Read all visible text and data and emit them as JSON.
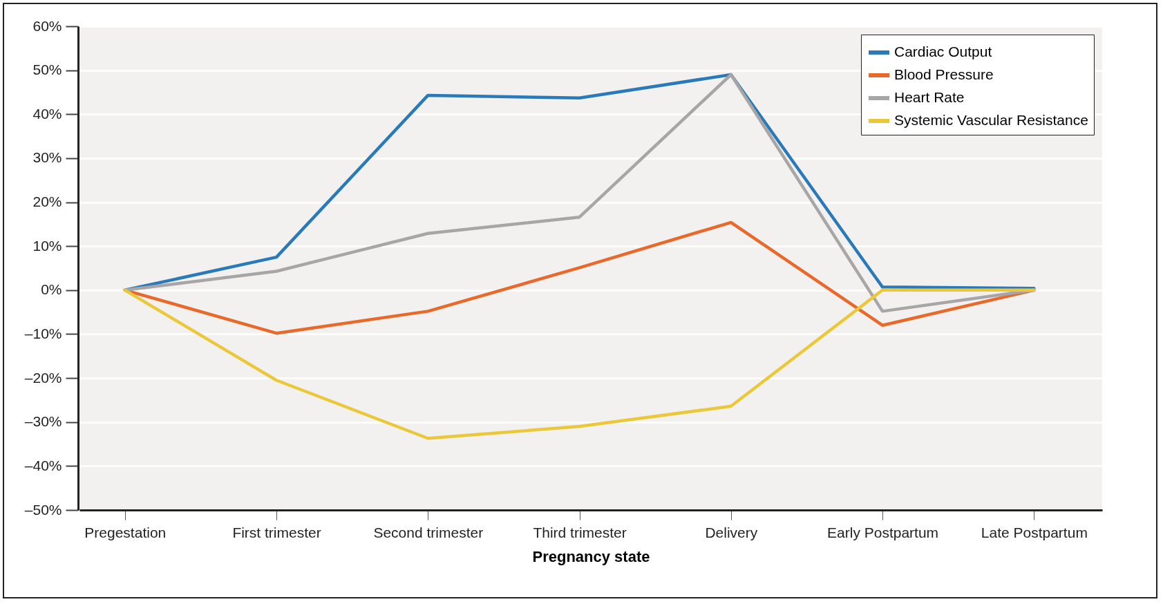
{
  "chart_data": {
    "type": "line",
    "xlabel": "Pregnancy state",
    "categories": [
      "Pregestation",
      "First trimester",
      "Second trimester",
      "Third trimester",
      "Delivery",
      "Early Postpartum",
      "Late Postpartum"
    ],
    "series": [
      {
        "name": "Cardiac Output",
        "color": "#2a7ab9",
        "values": [
          0,
          7.5,
          44.3,
          43.7,
          49,
          0.7,
          0.4
        ]
      },
      {
        "name": "Blood Pressure",
        "color": "#e8692a",
        "values": [
          0,
          -9.8,
          -4.8,
          5.1,
          15.4,
          -8,
          0
        ]
      },
      {
        "name": "Heart Rate",
        "color": "#a7a5a5",
        "values": [
          0,
          4.3,
          12.9,
          16.6,
          49,
          -4.8,
          0
        ]
      },
      {
        "name": "Systemic Vascular Resistance",
        "color": "#ebc83a",
        "values": [
          0,
          -20.5,
          -33.7,
          -31,
          -26.4,
          0,
          0
        ]
      }
    ],
    "ylim": [
      -50,
      60
    ],
    "yticks": [
      {
        "value": -50,
        "label": "–50%"
      },
      {
        "value": -40,
        "label": "–40%"
      },
      {
        "value": -30,
        "label": "–30%"
      },
      {
        "value": -20,
        "label": "–20%"
      },
      {
        "value": -10,
        "label": "–10%"
      },
      {
        "value": 0,
        "label": "0%"
      },
      {
        "value": 10,
        "label": "10%"
      },
      {
        "value": 20,
        "label": "20%"
      },
      {
        "value": 30,
        "label": "30%"
      },
      {
        "value": 40,
        "label": "40%"
      },
      {
        "value": 50,
        "label": "50%"
      },
      {
        "value": 60,
        "label": "60%"
      }
    ],
    "grid": "y",
    "legend": "top right",
    "marker": "none",
    "line_style": "solid"
  }
}
